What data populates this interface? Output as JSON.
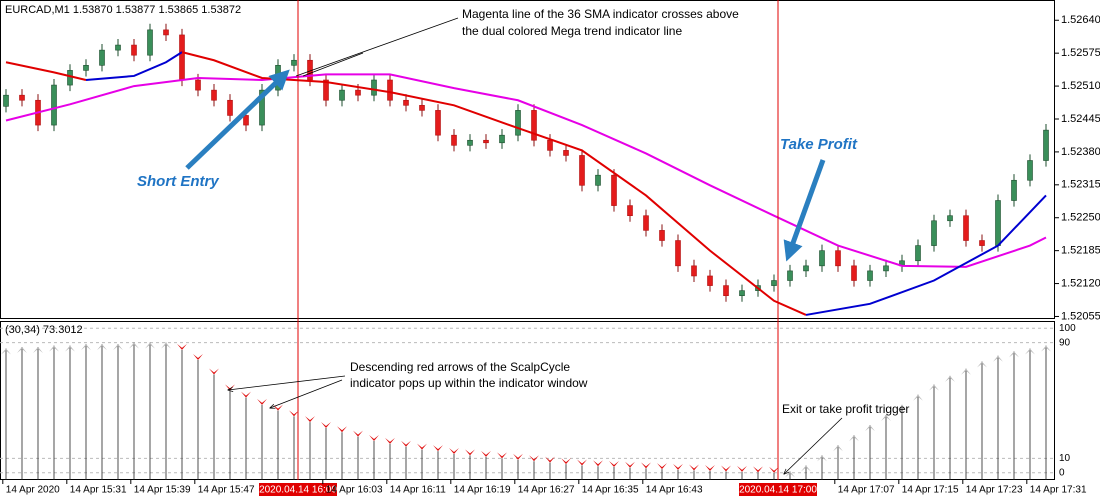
{
  "chart_data": [
    {
      "type": "candlestick",
      "title": "EURCAD,M1  1.53870 1.53877 1.53865 1.53872",
      "xlim": [
        -0.375,
        65.5625
      ],
      "ylim": [
        1.5205,
        1.5268
      ],
      "yticks": [
        {
          "value": 1.5264,
          "label": "1.52640"
        },
        1.52575,
        {
          "value": 1.5251,
          "label": "1.52510"
        },
        1.52445,
        {
          "value": 1.5238,
          "label": "1.52380"
        },
        1.52315,
        {
          "value": 1.5225,
          "label": "1.52250"
        },
        1.52185,
        {
          "value": 1.5212,
          "label": "1.52120"
        },
        1.52055
      ],
      "up_color": "#3a8f5a",
      "down_color": "#e41c1c",
      "open": [
        1.5247,
        1.52492,
        1.52482,
        1.52433,
        1.52512,
        1.52541,
        1.52551,
        1.52581,
        1.52591,
        1.52571,
        1.52621,
        1.52611,
        1.52522,
        1.52502,
        1.52482,
        1.52452,
        1.52433,
        1.52502,
        1.52551,
        1.52561,
        1.52522,
        1.52482,
        1.52502,
        1.52492,
        1.52522,
        1.52482,
        1.52472,
        1.52462,
        1.52413,
        1.52393,
        1.52403,
        1.52398,
        1.52413,
        1.52462,
        1.52403,
        1.52383,
        1.52373,
        1.52314,
        1.52334,
        1.52274,
        1.52254,
        1.52225,
        1.52205,
        1.52155,
        1.52135,
        1.52116,
        1.52096,
        1.52106,
        1.52116,
        1.52126,
        1.52145,
        1.52155,
        1.52185,
        1.52155,
        1.52126,
        1.52145,
        1.52155,
        1.52165,
        1.52195,
        1.52244,
        1.52254,
        1.52205,
        1.52195,
        1.52284,
        1.52324,
        1.52363
      ],
      "high": [
        1.52504,
        1.52504,
        1.52494,
        1.52524,
        1.52553,
        1.52563,
        1.52593,
        1.52603,
        1.52603,
        1.52633,
        1.52633,
        1.52623,
        1.52534,
        1.52514,
        1.52494,
        1.52464,
        1.52514,
        1.52563,
        1.52573,
        1.52573,
        1.52534,
        1.52514,
        1.52514,
        1.52534,
        1.52534,
        1.52494,
        1.52484,
        1.52474,
        1.52425,
        1.52415,
        1.52415,
        1.52425,
        1.52474,
        1.52474,
        1.52415,
        1.52395,
        1.52385,
        1.52346,
        1.52346,
        1.52286,
        1.52266,
        1.52237,
        1.52217,
        1.52167,
        1.52147,
        1.52128,
        1.52118,
        1.52128,
        1.52138,
        1.52157,
        1.52167,
        1.52197,
        1.52197,
        1.52167,
        1.52157,
        1.52167,
        1.52177,
        1.52207,
        1.52256,
        1.52266,
        1.52266,
        1.52217,
        1.52296,
        1.52336,
        1.52375,
        1.52435
      ],
      "low": [
        1.52458,
        1.5247,
        1.52421,
        1.52421,
        1.525,
        1.52529,
        1.52539,
        1.52569,
        1.52559,
        1.52559,
        1.52599,
        1.5251,
        1.5249,
        1.5247,
        1.5244,
        1.52421,
        1.52421,
        1.5249,
        1.52539,
        1.5251,
        1.5247,
        1.5247,
        1.5248,
        1.5248,
        1.5247,
        1.5246,
        1.5245,
        1.52401,
        1.52381,
        1.52381,
        1.52386,
        1.52386,
        1.52401,
        1.52391,
        1.52371,
        1.52361,
        1.52302,
        1.52302,
        1.52262,
        1.52242,
        1.52213,
        1.52193,
        1.52143,
        1.52123,
        1.52104,
        1.52084,
        1.52084,
        1.52094,
        1.52104,
        1.52114,
        1.52133,
        1.52143,
        1.52143,
        1.52114,
        1.52114,
        1.52133,
        1.52143,
        1.52153,
        1.52183,
        1.52232,
        1.52193,
        1.52183,
        1.52183,
        1.52272,
        1.52312,
        1.52351
      ],
      "close": [
        1.52492,
        1.52482,
        1.52433,
        1.52512,
        1.52541,
        1.52551,
        1.52581,
        1.52591,
        1.52571,
        1.52621,
        1.52611,
        1.52522,
        1.52502,
        1.52482,
        1.52452,
        1.52433,
        1.52502,
        1.52551,
        1.52561,
        1.52522,
        1.52482,
        1.52502,
        1.52492,
        1.52522,
        1.52482,
        1.52472,
        1.52462,
        1.52413,
        1.52393,
        1.52403,
        1.52398,
        1.52413,
        1.52462,
        1.52403,
        1.52383,
        1.52373,
        1.52314,
        1.52334,
        1.52274,
        1.52254,
        1.52225,
        1.52205,
        1.52155,
        1.52135,
        1.52116,
        1.52096,
        1.52106,
        1.52116,
        1.52126,
        1.52145,
        1.52155,
        1.52185,
        1.52155,
        1.52126,
        1.52145,
        1.52155,
        1.52165,
        1.52195,
        1.52244,
        1.52254,
        1.52205,
        1.52195,
        1.52284,
        1.52324,
        1.52363,
        1.52423
      ],
      "series": [
        {
          "color": "#e600e6",
          "x": [
            0,
            4,
            8,
            12,
            16,
            20,
            24,
            28,
            32,
            36,
            40,
            44,
            48,
            52,
            56,
            60,
            64,
            65
          ],
          "values": [
            1.52442,
            1.52474,
            1.5251,
            1.52526,
            1.52522,
            1.52533,
            1.52533,
            1.52506,
            1.52482,
            1.52433,
            1.52377,
            1.52314,
            1.52254,
            1.52195,
            1.52155,
            1.52153,
            1.52195,
            1.52211
          ]
        },
        {
          "color": "#e00000",
          "x": [
            0,
            3,
            5
          ],
          "values": [
            1.52557,
            1.52537,
            1.52522
          ]
        },
        {
          "color": "#0000d0",
          "x": [
            5,
            8,
            10,
            11
          ],
          "values": [
            1.52522,
            1.5253,
            1.52557,
            1.52577
          ]
        },
        {
          "color": "#e00000",
          "x": [
            11,
            13,
            16,
            20,
            24,
            28,
            32,
            36,
            40,
            44,
            48,
            50
          ],
          "values": [
            1.52577,
            1.52561,
            1.52526,
            1.52518,
            1.52498,
            1.52472,
            1.52427,
            1.52383,
            1.52294,
            1.52185,
            1.52086,
            1.52058
          ]
        },
        {
          "color": "#0000d0",
          "x": [
            50,
            54,
            58,
            62,
            65
          ],
          "values": [
            1.52058,
            1.5208,
            1.52126,
            1.52195,
            1.52294
          ]
        }
      ],
      "markers": [
        {
          "x": 18.25,
          "label": "2020.04.14 16:00"
        },
        {
          "x": 48.25,
          "label": "2020.04.14 17:00"
        }
      ],
      "marker_color": "#e00000"
    },
    {
      "type": "oscillator",
      "title": "(30,34) 73.3012",
      "xlim": [
        -0.375,
        65.5625
      ],
      "ylim": [
        -5,
        105
      ],
      "yticks": [
        0,
        10,
        90,
        100
      ],
      "grid": true,
      "down_color": "#e01010",
      "up_color": "#b8b8b8",
      "values": [
        86,
        87,
        87,
        88,
        88,
        89,
        89,
        89,
        90,
        90,
        90,
        85,
        78,
        68,
        57,
        52,
        47,
        43,
        39,
        35,
        31,
        28,
        25,
        22,
        20,
        18,
        16,
        15,
        13,
        12,
        11,
        10,
        9,
        8,
        7,
        6,
        5,
        4.5,
        4,
        3.5,
        3,
        2.5,
        2,
        1.6,
        1.2,
        0.9,
        0.6,
        0.3,
        0,
        1,
        5,
        12,
        19,
        26,
        33,
        40,
        47,
        54,
        61,
        67,
        72,
        77,
        81,
        84,
        86,
        88
      ],
      "xticks": [
        {
          "value": -0.2,
          "label": "14 Apr 2020"
        },
        {
          "value": 3.8,
          "label": "14 Apr 15:31"
        },
        {
          "value": 7.8,
          "label": "14 Apr 15:39"
        },
        {
          "value": 11.8,
          "label": "14 Apr 15:47"
        },
        {
          "value": 19.8,
          "label": "14 Apr 16:03"
        },
        {
          "value": 23.8,
          "label": "14 Apr 16:11"
        },
        {
          "value": 27.8,
          "label": "14 Apr 16:19"
        },
        {
          "value": 31.8,
          "label": "14 Apr 16:27"
        },
        {
          "value": 35.8,
          "label": "14 Apr 16:35"
        },
        {
          "value": 39.8,
          "label": "14 Apr 16:43"
        },
        {
          "value": 51.8,
          "label": "14 Apr 17:07"
        },
        {
          "value": 55.8,
          "label": "14 Apr 17:15"
        },
        {
          "value": 59.8,
          "label": "14 Apr 17:23"
        },
        {
          "value": 63.8,
          "label": "14 Apr 17:31"
        }
      ]
    }
  ],
  "annotations": {
    "sma_cross": [
      "Magenta line of the 36 SMA indicator crosses above",
      "the dual colored Mega trend indicator line"
    ],
    "short_entry": "Short Entry",
    "take_profit": "Take Profit",
    "arrows_note": [
      "Descending red arrows of the ScalpCycle",
      "indicator pops up within the indicator window"
    ],
    "exit_note": "Exit or take profit trigger"
  }
}
